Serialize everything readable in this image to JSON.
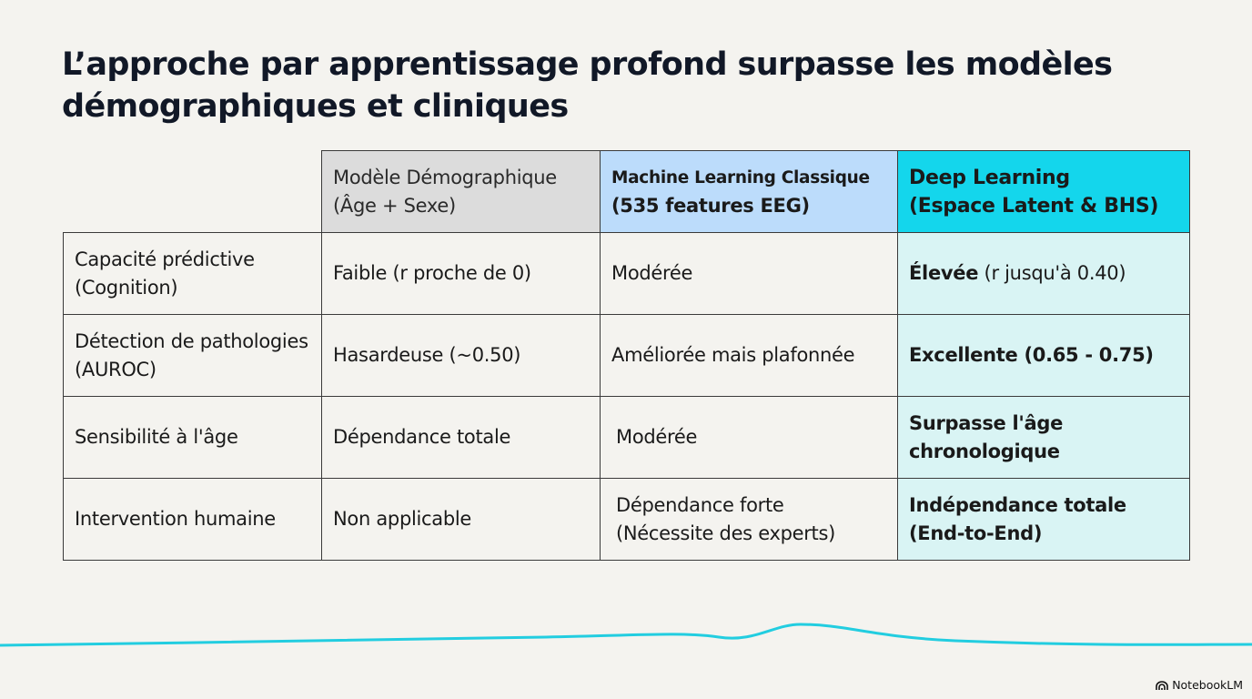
{
  "title": "L’approche par apprentissage profond surpasse les modèles démographiques et cliniques",
  "table": {
    "headers": [
      {
        "line1": "Modèle Démographique",
        "line2": "(Âge + Sexe)"
      },
      {
        "line1": "Machine Learning Classique",
        "line2": "(535 features EEG)"
      },
      {
        "line1": "Deep Learning",
        "line2": "(Espace Latent & BHS)"
      }
    ],
    "rows": [
      {
        "label": "Capacité prédictive (Cognition)",
        "demo": "Faible (r proche de 0)",
        "ml": "Modérée",
        "dl_bold": "Élevée",
        "dl_rest": " (r jusqu'à 0.40)"
      },
      {
        "label": "Détection de pathologies (AUROC)",
        "demo": "Hasardeuse (~0.50)",
        "ml": "Améliorée mais plafonnée",
        "dl_bold": "Excellente (0.65 - 0.75)",
        "dl_rest": ""
      },
      {
        "label": "Sensibilité à l'âge",
        "demo": "Dépendance totale",
        "ml": "Modérée",
        "dl_bold": "Surpasse l'âge chronologique",
        "dl_rest": ""
      },
      {
        "label": "Intervention humaine",
        "demo": "Non applicable",
        "ml": "Dépendance forte (Nécessite des experts)",
        "dl_bold": "Indépendance totale (End-to-End)",
        "dl_rest": ""
      }
    ]
  },
  "colors": {
    "demo_header": "#dcdcdc",
    "ml_header": "#bcdcfb",
    "dl_header": "#14d6ec",
    "dl_cells": "#d9f4f4",
    "wave": "#22cde0"
  },
  "brand": {
    "icon": "notebooklm-logo-icon",
    "name": "NotebookLM"
  }
}
